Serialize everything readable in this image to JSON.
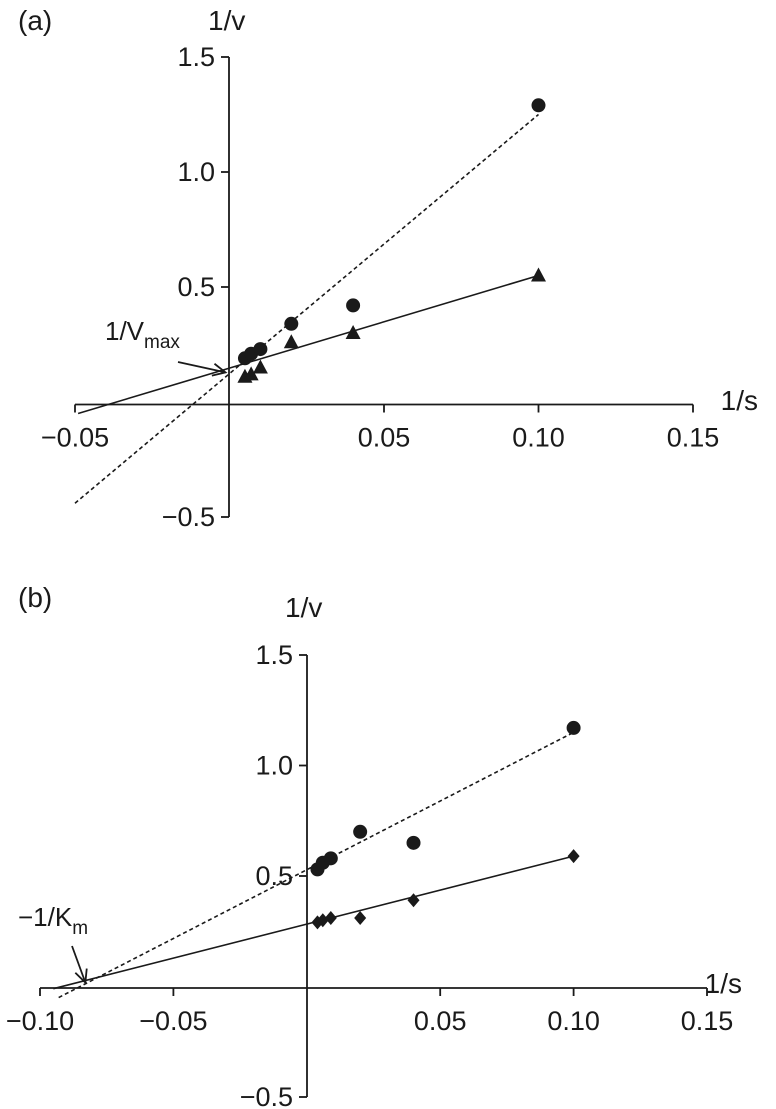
{
  "chart_data": [
    {
      "type": "line",
      "panel_label": "(a)",
      "xlabel": "1/s",
      "ylabel": "1/v",
      "xlim": [
        -0.05,
        0.15
      ],
      "ylim": [
        -0.5,
        1.5
      ],
      "xticks": [
        -0.05,
        0.05,
        0.1,
        0.15
      ],
      "xtick_labels": [
        "−0.05",
        "0.05",
        "0.10",
        "0.15"
      ],
      "yticks": [
        -0.5,
        0.5,
        1.0,
        1.5
      ],
      "ytick_labels": [
        "−0.5",
        "0.5",
        "1.0",
        "1.5"
      ],
      "annotation": {
        "text": "1/V",
        "subscript": "max",
        "x": 0.0,
        "y": 0.12
      },
      "series": [
        {
          "marker": "circle",
          "line_style": "dashed",
          "x": [
            0.005,
            0.007,
            0.01,
            0.02,
            0.04,
            0.1
          ],
          "y": [
            0.19,
            0.21,
            0.23,
            0.34,
            0.42,
            1.29
          ],
          "fit": {
            "x": [
              -0.05,
              0.1
            ],
            "y": [
              -0.44,
              1.25
            ]
          }
        },
        {
          "marker": "triangle",
          "line_style": "solid",
          "x": [
            0.005,
            0.007,
            0.01,
            0.02,
            0.04,
            0.1
          ],
          "y": [
            0.11,
            0.12,
            0.15,
            0.26,
            0.3,
            0.55
          ],
          "fit": {
            "x": [
              -0.049,
              0.1
            ],
            "y": [
              -0.05,
              0.55
            ]
          }
        }
      ]
    },
    {
      "type": "line",
      "panel_label": "(b)",
      "xlabel": "1/s",
      "ylabel": "1/v",
      "xlim": [
        -0.1,
        0.15
      ],
      "ylim": [
        -0.5,
        1.5
      ],
      "xticks": [
        -0.1,
        -0.05,
        0.05,
        0.1,
        0.15
      ],
      "xtick_labels": [
        "−0.10",
        "−0.05",
        "0.05",
        "0.10",
        "0.15"
      ],
      "yticks": [
        -0.5,
        0.5,
        1.0,
        1.5
      ],
      "ytick_labels": [
        "−0.5",
        "0.5",
        "1.0",
        "1.5"
      ],
      "annotation": {
        "text": "−1/K",
        "subscript": "m",
        "x": -0.083,
        "y": 0.0
      },
      "series": [
        {
          "marker": "circle",
          "line_style": "dashed",
          "x": [
            0.004,
            0.006,
            0.009,
            0.02,
            0.04,
            0.1
          ],
          "y": [
            0.53,
            0.56,
            0.58,
            0.7,
            0.65,
            1.17
          ],
          "fit": {
            "x": [
              -0.093,
              0.1
            ],
            "y": [
              -0.05,
              1.15
            ]
          }
        },
        {
          "marker": "diamond",
          "line_style": "solid",
          "x": [
            0.004,
            0.006,
            0.009,
            0.02,
            0.04,
            0.1
          ],
          "y": [
            0.29,
            0.3,
            0.31,
            0.31,
            0.39,
            0.59
          ],
          "fit": {
            "x": [
              -0.095,
              0.1
            ],
            "y": [
              -0.01,
              0.59
            ]
          }
        }
      ]
    }
  ]
}
